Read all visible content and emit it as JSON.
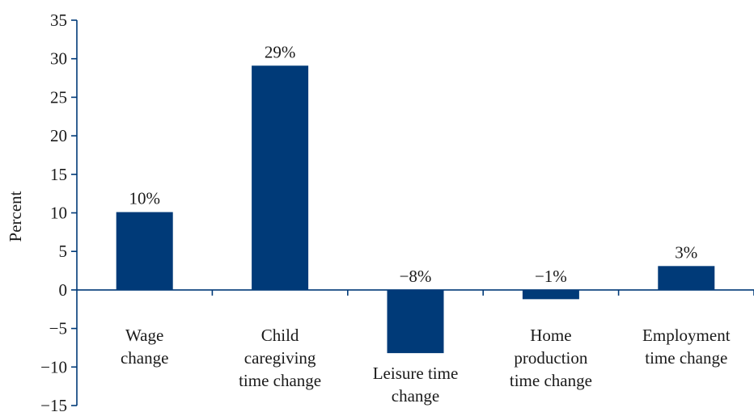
{
  "chart_data": {
    "type": "bar",
    "ylabel": "Percent",
    "ylim": [
      -15,
      35
    ],
    "yticks": [
      35,
      30,
      25,
      20,
      15,
      10,
      5,
      0,
      -5,
      -10,
      -15
    ],
    "ytick_labels": [
      "35",
      "30",
      "25",
      "20",
      "15",
      "10",
      "5",
      "0",
      "−5",
      "−10",
      "−15"
    ],
    "categories": [
      [
        "Wage",
        "change"
      ],
      [
        "Child",
        "caregiving",
        "time change"
      ],
      [
        "Leisure time",
        "change"
      ],
      [
        "Home",
        "production",
        "time change"
      ],
      [
        "Employment",
        "time change"
      ]
    ],
    "values": [
      10.1,
      29.1,
      -8.2,
      -1.2,
      3.1
    ],
    "data_labels": [
      "10%",
      "29%",
      "−8%",
      "−1%",
      "3%"
    ],
    "bar_color": "#003a78",
    "axis_color": "#003a78",
    "grid": false,
    "legend": "none"
  }
}
